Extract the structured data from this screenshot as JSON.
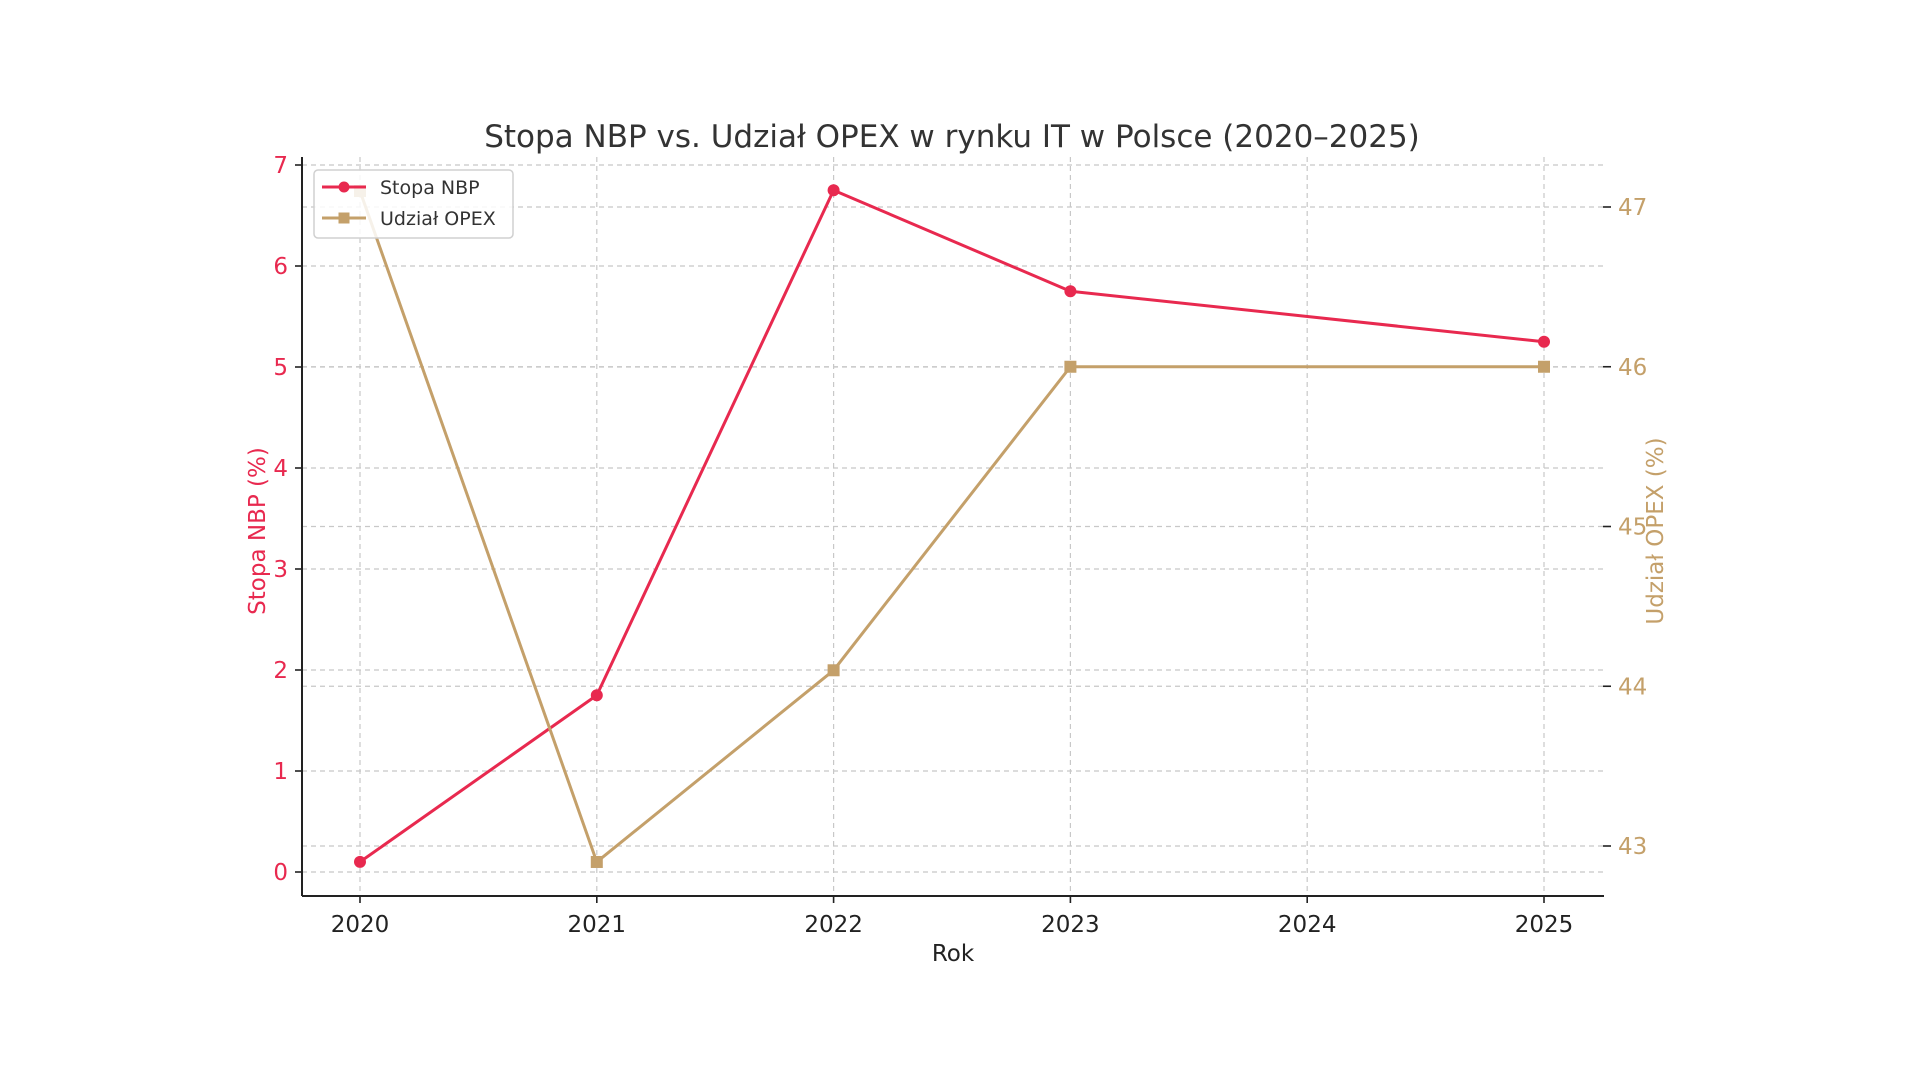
{
  "chart_data": {
    "type": "line",
    "title": "Stopa NBP vs. Udział OPEX w rynku IT w Polsce (2020–2025)",
    "xlabel": "Rok",
    "ylabel_left": "Stopa NBP (%)",
    "ylabel_right": "Udział OPEX (%)",
    "x": [
      2020,
      2021,
      2022,
      2023,
      2025
    ],
    "x_ticks": [
      "2020",
      "2021",
      "2022",
      "2023",
      "2024",
      "2025"
    ],
    "y_left_ticks": [
      "0",
      "1",
      "2",
      "3",
      "4",
      "5",
      "6",
      "7"
    ],
    "y_right_ticks": [
      "43",
      "44",
      "45",
      "46",
      "47"
    ],
    "ylim_left": [
      -0.22,
      7.08
    ],
    "ylim_right": [
      42.7,
      47.3
    ],
    "xlim": [
      2019.75,
      2025.25
    ],
    "grid": true,
    "legend_position": "upper left",
    "series": [
      {
        "name": "Stopa NBP",
        "axis": "left",
        "color": "#e8294f",
        "marker": "circle",
        "values": [
          0.1,
          1.75,
          6.75,
          5.75,
          5.25
        ]
      },
      {
        "name": "Udział OPEX",
        "axis": "right",
        "color": "#c4a06a",
        "marker": "square",
        "values": [
          47.1,
          42.9,
          44.1,
          46.0,
          46.0
        ]
      }
    ]
  },
  "legend": {
    "items": [
      {
        "label": "Stopa NBP"
      },
      {
        "label": "Udział OPEX"
      }
    ]
  },
  "colors": {
    "nbp": "#e8294f",
    "opex": "#c4a06a",
    "grid": "#c8c8c8",
    "spine": "#222222",
    "title": "#333333"
  }
}
